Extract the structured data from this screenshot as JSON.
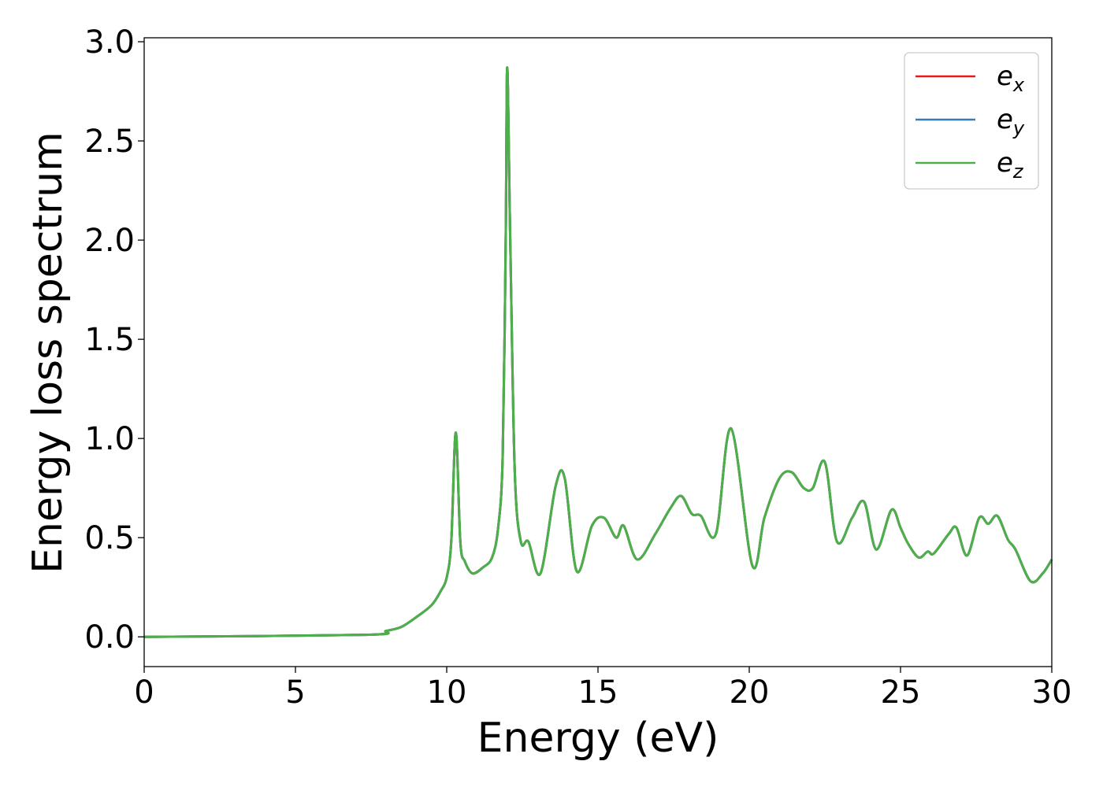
{
  "chart_data": {
    "type": "line",
    "xlabel": "Energy (eV)",
    "ylabel": "Energy loss spectrum",
    "xlim": [
      0,
      30
    ],
    "ylim": [
      -0.15,
      3.02
    ],
    "xticks": [
      "0",
      "5",
      "10",
      "15",
      "20",
      "25",
      "30"
    ],
    "yticks": [
      "0.0",
      "0.5",
      "1.0",
      "1.5",
      "2.0",
      "2.5",
      "3.0"
    ],
    "grid": false,
    "legend_position": "top-right",
    "x": [
      0,
      7.3,
      8,
      8.5,
      9,
      9.5,
      9.8,
      10,
      10.15,
      10.3,
      10.45,
      10.6,
      10.85,
      11.2,
      11.5,
      11.7,
      11.85,
      11.95,
      12,
      12.1,
      12.25,
      12.45,
      12.7,
      13.1,
      13.6,
      13.9,
      14.3,
      14.8,
      15.2,
      15.6,
      15.85,
      16.3,
      16.9,
      17.4,
      17.75,
      18.1,
      18.4,
      18.9,
      19.4,
      20.1,
      20.5,
      21,
      21.4,
      21.8,
      22.1,
      22.5,
      22.9,
      23.4,
      23.8,
      24.2,
      24.7,
      25,
      25.25,
      25.6,
      25.9,
      26.1,
      26.6,
      26.85,
      27.2,
      27.6,
      27.9,
      28.2,
      28.55,
      28.8,
      29.3,
      29.7,
      30
    ],
    "series": [
      {
        "name": "e",
        "subscript": "x",
        "color": "#e41a1c",
        "values": [
          0,
          0.01,
          0.03,
          0.05,
          0.1,
          0.16,
          0.23,
          0.3,
          0.48,
          1.03,
          0.48,
          0.38,
          0.32,
          0.35,
          0.4,
          0.55,
          0.91,
          2.0,
          2.87,
          2.0,
          0.83,
          0.48,
          0.48,
          0.32,
          0.76,
          0.8,
          0.33,
          0.56,
          0.6,
          0.5,
          0.56,
          0.39,
          0.52,
          0.65,
          0.71,
          0.62,
          0.61,
          0.52,
          1.05,
          0.36,
          0.6,
          0.8,
          0.83,
          0.75,
          0.75,
          0.88,
          0.48,
          0.6,
          0.68,
          0.44,
          0.64,
          0.55,
          0.47,
          0.4,
          0.43,
          0.42,
          0.52,
          0.55,
          0.41,
          0.6,
          0.57,
          0.61,
          0.49,
          0.44,
          0.28,
          0.32,
          0.39
        ]
      },
      {
        "name": "e",
        "subscript": "y",
        "color": "#377eb8",
        "values": [
          0,
          0.01,
          0.03,
          0.05,
          0.1,
          0.16,
          0.23,
          0.3,
          0.48,
          1.03,
          0.48,
          0.38,
          0.32,
          0.35,
          0.4,
          0.55,
          0.91,
          2.0,
          2.87,
          2.0,
          0.83,
          0.48,
          0.48,
          0.32,
          0.76,
          0.8,
          0.33,
          0.56,
          0.6,
          0.5,
          0.56,
          0.39,
          0.52,
          0.65,
          0.71,
          0.62,
          0.61,
          0.52,
          1.05,
          0.36,
          0.6,
          0.8,
          0.83,
          0.75,
          0.75,
          0.88,
          0.48,
          0.6,
          0.68,
          0.44,
          0.64,
          0.55,
          0.47,
          0.4,
          0.43,
          0.42,
          0.52,
          0.55,
          0.41,
          0.6,
          0.57,
          0.61,
          0.49,
          0.44,
          0.28,
          0.32,
          0.39
        ]
      },
      {
        "name": "e",
        "subscript": "z",
        "color": "#4daf4a",
        "values": [
          0,
          0.01,
          0.03,
          0.05,
          0.1,
          0.16,
          0.23,
          0.3,
          0.48,
          1.03,
          0.48,
          0.38,
          0.32,
          0.35,
          0.4,
          0.55,
          0.91,
          2.0,
          2.87,
          2.0,
          0.83,
          0.48,
          0.48,
          0.32,
          0.76,
          0.8,
          0.33,
          0.56,
          0.6,
          0.5,
          0.56,
          0.39,
          0.52,
          0.65,
          0.71,
          0.62,
          0.61,
          0.52,
          1.05,
          0.36,
          0.6,
          0.8,
          0.83,
          0.75,
          0.75,
          0.88,
          0.48,
          0.6,
          0.68,
          0.44,
          0.64,
          0.55,
          0.47,
          0.4,
          0.43,
          0.42,
          0.52,
          0.55,
          0.41,
          0.6,
          0.57,
          0.61,
          0.49,
          0.44,
          0.28,
          0.32,
          0.39
        ]
      }
    ]
  }
}
